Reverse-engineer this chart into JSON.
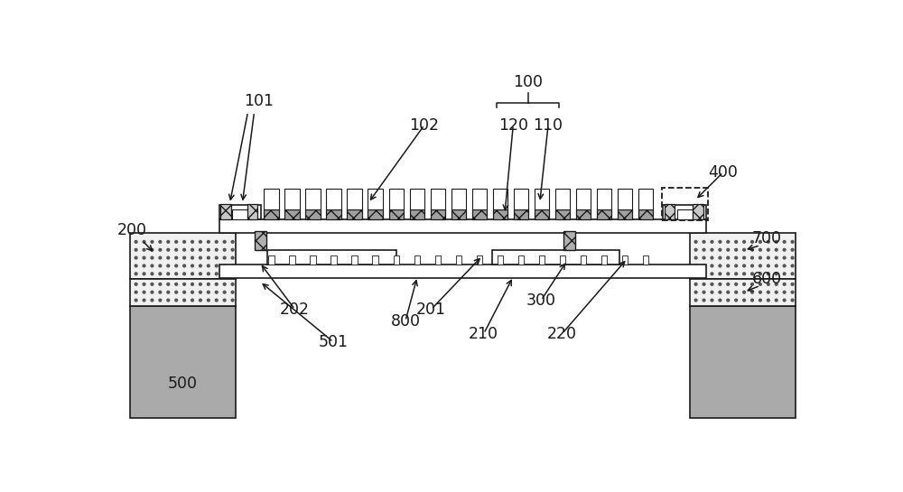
{
  "bg_color": "#ffffff",
  "lc": "#1a1a1a",
  "gray_block": "#aaaaaa",
  "dot_bg": "#f0f0f0",
  "dot_color": "#555555",
  "cross_bg": "#c0c0c0",
  "spring_bg": "#b8b8b8",
  "lw": 1.2
}
